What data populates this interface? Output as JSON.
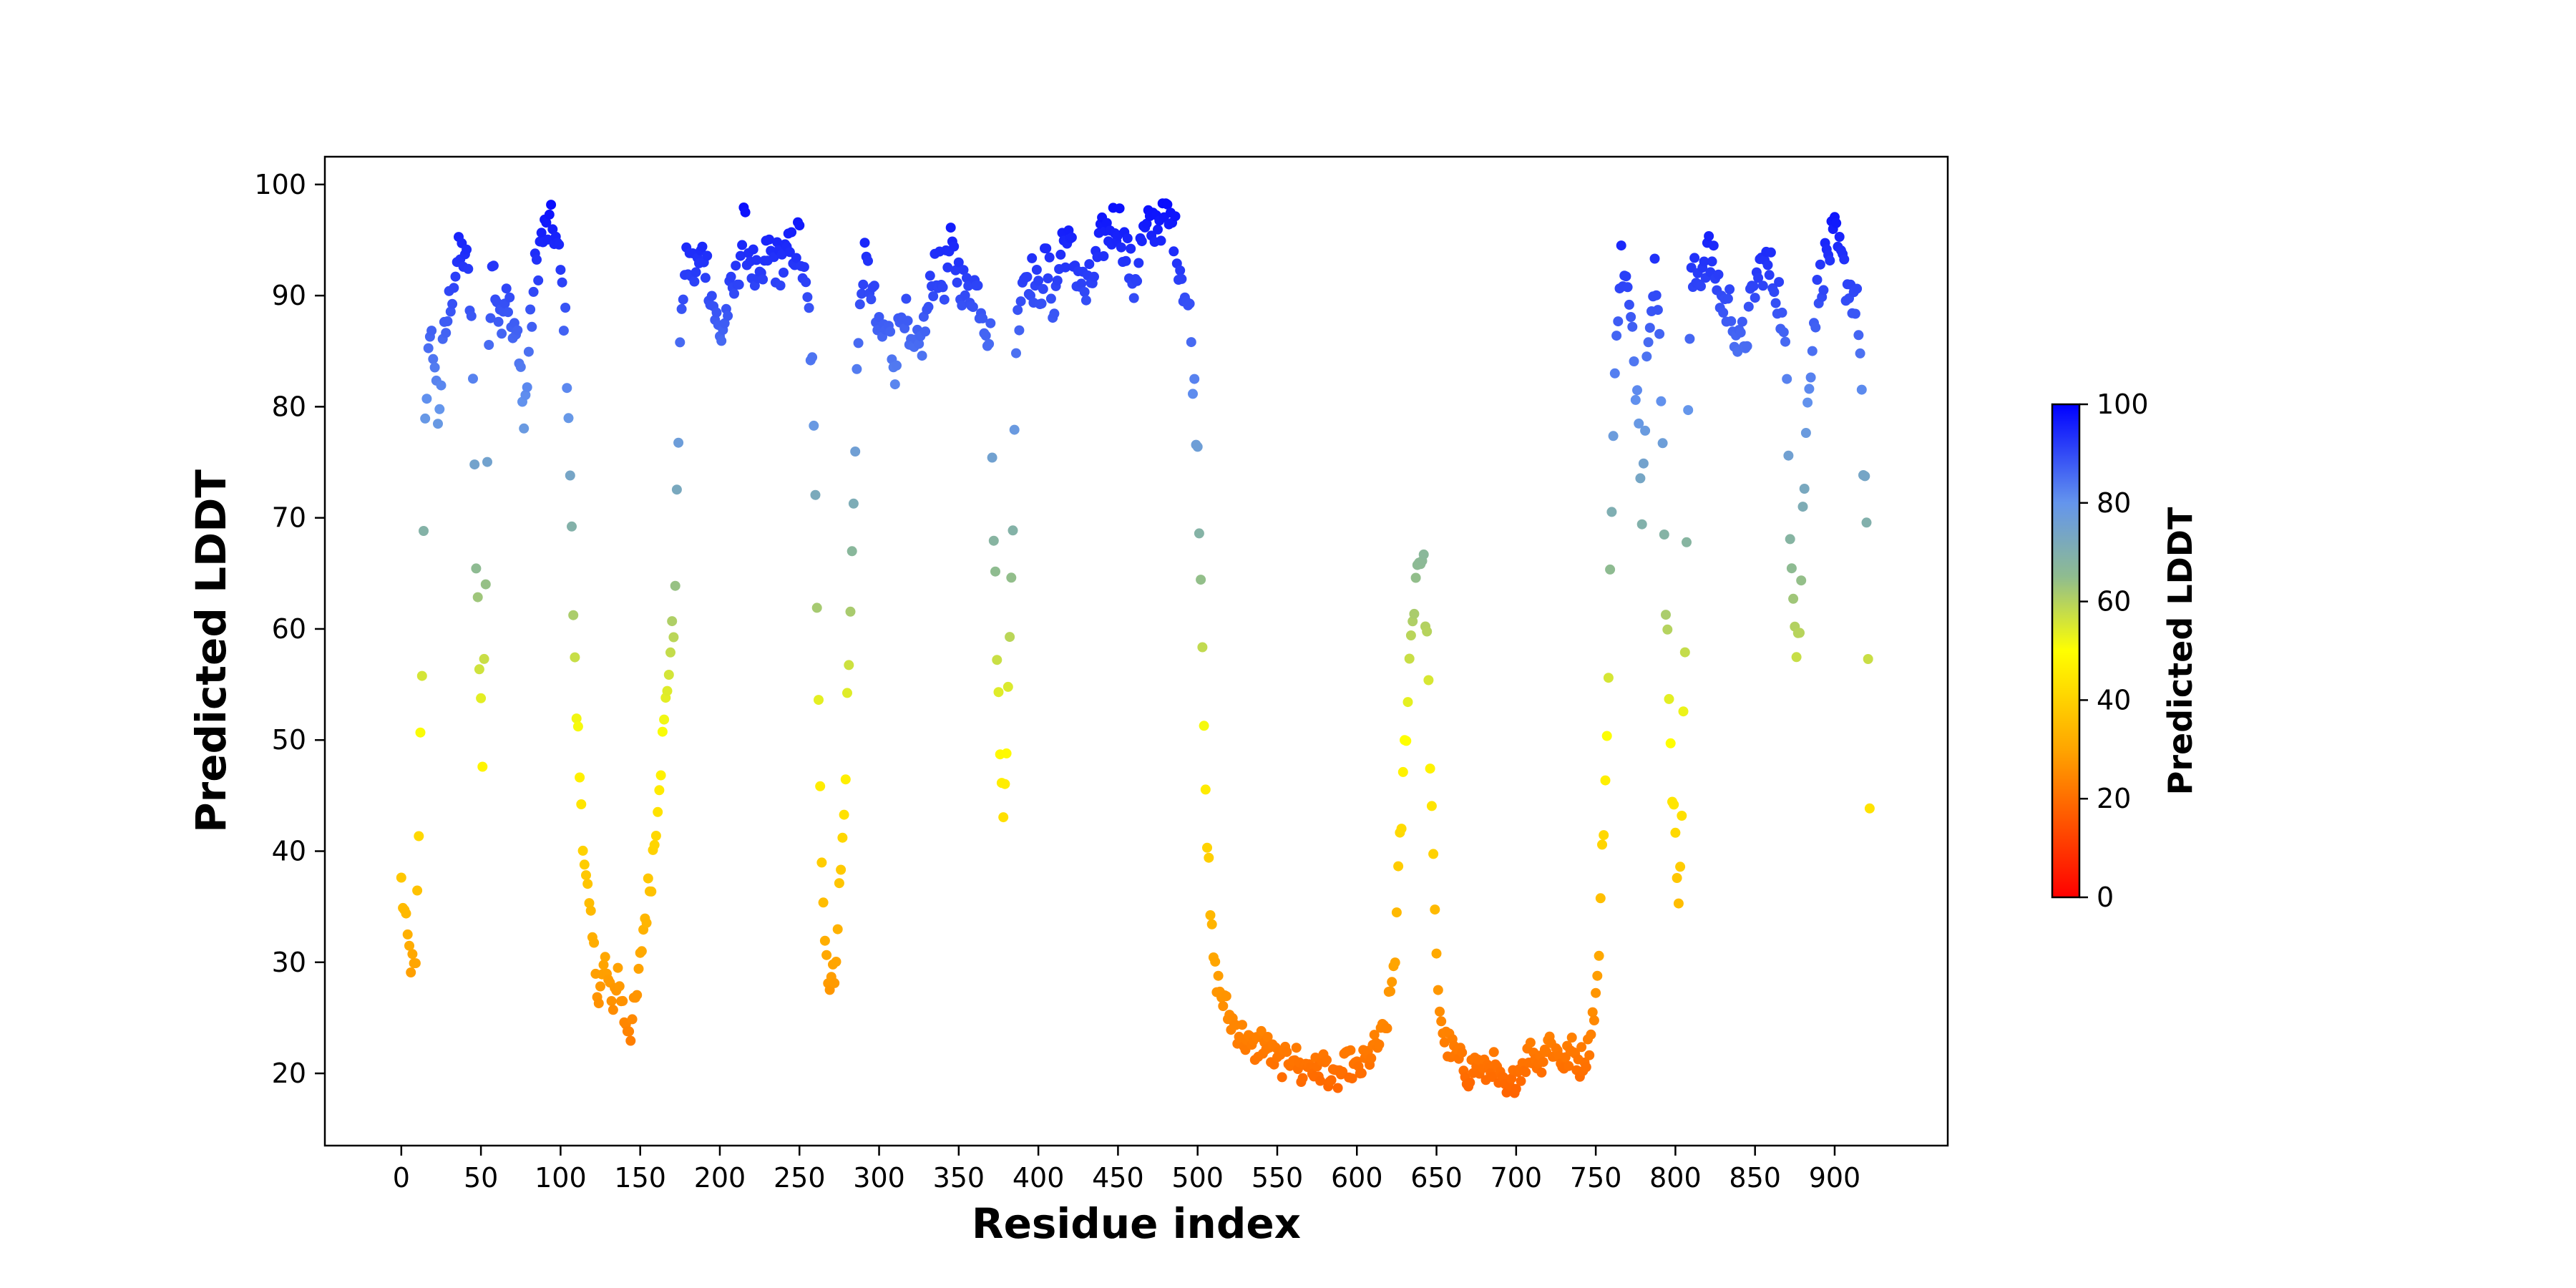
{
  "chart_data": {
    "type": "scatter",
    "title": "",
    "xlabel": "Residue index",
    "ylabel": "Predicted LDDT",
    "xlim": [
      -48,
      971
    ],
    "ylim": [
      13.5,
      102.5
    ],
    "xticks": [
      0,
      50,
      100,
      150,
      200,
      250,
      300,
      350,
      400,
      450,
      500,
      550,
      600,
      650,
      700,
      750,
      800,
      850,
      900
    ],
    "yticks": [
      20,
      30,
      40,
      50,
      60,
      70,
      80,
      90,
      100
    ],
    "grid": false,
    "marker": "circle",
    "colormap": {
      "name": "red-orange-yellow-grey-blue",
      "stops": [
        {
          "value": 0,
          "color": "#ff0000"
        },
        {
          "value": 30,
          "color": "#ffa500"
        },
        {
          "value": 50,
          "color": "#ffff00"
        },
        {
          "value": 65,
          "color": "#8fbc8f"
        },
        {
          "value": 80,
          "color": "#6495ed"
        },
        {
          "value": 100,
          "color": "#0000ff"
        }
      ]
    },
    "colorbar": {
      "label": "Predicted LDDT",
      "range": [
        0,
        100
      ],
      "ticks": [
        0,
        20,
        40,
        60,
        80,
        100
      ]
    },
    "anchors": [
      [
        0,
        37
      ],
      [
        3,
        33
      ],
      [
        6,
        30
      ],
      [
        9,
        29
      ],
      [
        11,
        42
      ],
      [
        13,
        57
      ],
      [
        15,
        80
      ],
      [
        17,
        84
      ],
      [
        20,
        86
      ],
      [
        23,
        79
      ],
      [
        27,
        86
      ],
      [
        31,
        90
      ],
      [
        35,
        93
      ],
      [
        40,
        94
      ],
      [
        44,
        88
      ],
      [
        47,
        67
      ],
      [
        49,
        58
      ],
      [
        51,
        48
      ],
      [
        53,
        65
      ],
      [
        55,
        86
      ],
      [
        58,
        93
      ],
      [
        62,
        88
      ],
      [
        66,
        91
      ],
      [
        70,
        86
      ],
      [
        74,
        86
      ],
      [
        77,
        78
      ],
      [
        80,
        85
      ],
      [
        84,
        92
      ],
      [
        88,
        95
      ],
      [
        92,
        96
      ],
      [
        96,
        96
      ],
      [
        100,
        92
      ],
      [
        103,
        87
      ],
      [
        105,
        80
      ],
      [
        107,
        68
      ],
      [
        109,
        56
      ],
      [
        112,
        47
      ],
      [
        116,
        37
      ],
      [
        120,
        32
      ],
      [
        124,
        27
      ],
      [
        128,
        30
      ],
      [
        132,
        26
      ],
      [
        136,
        29
      ],
      [
        140,
        25
      ],
      [
        144,
        24
      ],
      [
        148,
        27
      ],
      [
        152,
        33
      ],
      [
        156,
        37
      ],
      [
        159,
        41
      ],
      [
        162,
        47
      ],
      [
        165,
        51
      ],
      [
        168,
        57
      ],
      [
        171,
        60
      ],
      [
        173,
        71
      ],
      [
        176,
        90
      ],
      [
        180,
        93
      ],
      [
        185,
        92
      ],
      [
        190,
        94
      ],
      [
        195,
        90
      ],
      [
        200,
        86
      ],
      [
        205,
        89
      ],
      [
        210,
        91
      ],
      [
        215,
        96
      ],
      [
        220,
        93
      ],
      [
        225,
        90
      ],
      [
        230,
        94
      ],
      [
        235,
        93
      ],
      [
        240,
        93
      ],
      [
        245,
        94
      ],
      [
        250,
        95
      ],
      [
        253,
        91
      ],
      [
        256,
        88
      ],
      [
        258,
        83
      ],
      [
        260,
        71
      ],
      [
        262,
        55
      ],
      [
        264,
        40
      ],
      [
        266,
        32
      ],
      [
        269,
        28
      ],
      [
        272,
        29
      ],
      [
        275,
        36
      ],
      [
        278,
        43
      ],
      [
        280,
        53
      ],
      [
        282,
        61
      ],
      [
        284,
        72
      ],
      [
        286,
        83
      ],
      [
        290,
        93
      ],
      [
        295,
        91
      ],
      [
        300,
        86
      ],
      [
        305,
        87
      ],
      [
        310,
        84
      ],
      [
        315,
        90
      ],
      [
        320,
        84
      ],
      [
        325,
        85
      ],
      [
        330,
        88
      ],
      [
        335,
        93
      ],
      [
        340,
        91
      ],
      [
        345,
        94
      ],
      [
        350,
        92
      ],
      [
        355,
        90
      ],
      [
        360,
        91
      ],
      [
        365,
        89
      ],
      [
        370,
        86
      ],
      [
        372,
        68
      ],
      [
        374,
        59
      ],
      [
        376,
        48
      ],
      [
        378,
        45
      ],
      [
        380,
        50
      ],
      [
        382,
        58
      ],
      [
        384,
        70
      ],
      [
        386,
        86
      ],
      [
        390,
        92
      ],
      [
        395,
        92
      ],
      [
        400,
        90
      ],
      [
        405,
        93
      ],
      [
        410,
        89
      ],
      [
        415,
        95
      ],
      [
        420,
        94
      ],
      [
        425,
        92
      ],
      [
        430,
        90
      ],
      [
        435,
        92
      ],
      [
        440,
        95
      ],
      [
        445,
        96
      ],
      [
        450,
        97
      ],
      [
        455,
        94
      ],
      [
        460,
        91
      ],
      [
        465,
        95
      ],
      [
        470,
        96
      ],
      [
        475,
        97
      ],
      [
        480,
        97
      ],
      [
        485,
        96
      ],
      [
        490,
        92
      ],
      [
        495,
        88
      ],
      [
        498,
        81
      ],
      [
        500,
        76
      ],
      [
        502,
        65
      ],
      [
        504,
        53
      ],
      [
        506,
        41
      ],
      [
        508,
        34
      ],
      [
        511,
        29
      ],
      [
        515,
        27
      ],
      [
        520,
        25
      ],
      [
        525,
        24
      ],
      [
        530,
        23
      ],
      [
        535,
        22
      ],
      [
        540,
        23
      ],
      [
        545,
        22
      ],
      [
        550,
        21
      ],
      [
        555,
        21
      ],
      [
        560,
        22
      ],
      [
        565,
        20
      ],
      [
        570,
        21
      ],
      [
        575,
        20
      ],
      [
        580,
        21
      ],
      [
        585,
        19
      ],
      [
        590,
        20
      ],
      [
        595,
        21
      ],
      [
        600,
        20
      ],
      [
        605,
        21
      ],
      [
        610,
        22
      ],
      [
        615,
        23
      ],
      [
        618,
        24
      ],
      [
        621,
        27
      ],
      [
        624,
        31
      ],
      [
        627,
        40
      ],
      [
        630,
        49
      ],
      [
        633,
        57
      ],
      [
        636,
        63
      ],
      [
        638,
        66
      ],
      [
        640,
        67
      ],
      [
        642,
        65
      ],
      [
        644,
        59
      ],
      [
        646,
        49
      ],
      [
        648,
        38
      ],
      [
        650,
        30
      ],
      [
        652,
        26
      ],
      [
        655,
        23
      ],
      [
        660,
        22
      ],
      [
        665,
        21
      ],
      [
        670,
        20
      ],
      [
        675,
        21
      ],
      [
        680,
        20
      ],
      [
        685,
        21
      ],
      [
        690,
        19
      ],
      [
        695,
        18
      ],
      [
        700,
        20
      ],
      [
        705,
        21
      ],
      [
        710,
        22
      ],
      [
        715,
        21
      ],
      [
        720,
        23
      ],
      [
        725,
        22
      ],
      [
        730,
        21
      ],
      [
        735,
        22
      ],
      [
        740,
        21
      ],
      [
        745,
        22
      ],
      [
        748,
        25
      ],
      [
        751,
        28
      ],
      [
        753,
        35
      ],
      [
        755,
        43
      ],
      [
        757,
        50
      ],
      [
        759,
        65
      ],
      [
        761,
        76
      ],
      [
        763,
        88
      ],
      [
        766,
        93
      ],
      [
        770,
        90
      ],
      [
        774,
        84
      ],
      [
        777,
        80
      ],
      [
        779,
        71
      ],
      [
        781,
        79
      ],
      [
        783,
        88
      ],
      [
        787,
        93
      ],
      [
        790,
        85
      ],
      [
        792,
        76
      ],
      [
        794,
        63
      ],
      [
        796,
        55
      ],
      [
        798,
        46
      ],
      [
        800,
        40
      ],
      [
        802,
        37
      ],
      [
        804,
        44
      ],
      [
        806,
        58
      ],
      [
        808,
        80
      ],
      [
        810,
        91
      ],
      [
        815,
        92
      ],
      [
        820,
        94
      ],
      [
        825,
        92
      ],
      [
        830,
        89
      ],
      [
        835,
        89
      ],
      [
        840,
        85
      ],
      [
        845,
        87
      ],
      [
        850,
        91
      ],
      [
        855,
        93
      ],
      [
        860,
        92
      ],
      [
        865,
        90
      ],
      [
        868,
        86
      ],
      [
        870,
        82
      ],
      [
        872,
        70
      ],
      [
        874,
        64
      ],
      [
        876,
        59
      ],
      [
        878,
        60
      ],
      [
        880,
        70
      ],
      [
        882,
        77
      ],
      [
        884,
        83
      ],
      [
        888,
        89
      ],
      [
        892,
        92
      ],
      [
        896,
        94
      ],
      [
        900,
        95
      ],
      [
        904,
        93
      ],
      [
        908,
        91
      ],
      [
        912,
        90
      ],
      [
        915,
        88
      ],
      [
        917,
        81
      ],
      [
        918,
        73
      ],
      [
        919,
        72
      ],
      [
        920,
        68
      ],
      [
        921,
        58
      ],
      [
        922,
        44
      ]
    ]
  }
}
